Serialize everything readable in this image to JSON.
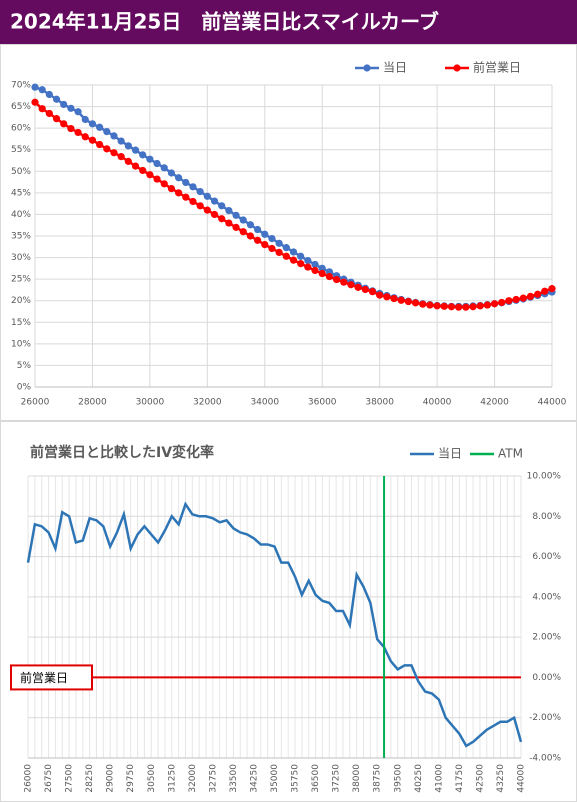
{
  "header": {
    "title": "2024年11月25日　前営業日比スマイルカーブ"
  },
  "chart_data": [
    {
      "type": "line",
      "markers": true,
      "legend": "top-right",
      "grid": true,
      "x": [
        26000,
        26250,
        26500,
        26750,
        27000,
        27250,
        27500,
        27750,
        28000,
        28250,
        28500,
        28750,
        29000,
        29250,
        29500,
        29750,
        30000,
        30250,
        30500,
        30750,
        31000,
        31250,
        31500,
        31750,
        32000,
        32250,
        32500,
        32750,
        33000,
        33250,
        33500,
        33750,
        34000,
        34250,
        34500,
        34750,
        35000,
        35250,
        35500,
        35750,
        36000,
        36250,
        36500,
        36750,
        37000,
        37250,
        37500,
        37750,
        38000,
        38250,
        38500,
        38750,
        39000,
        39250,
        39500,
        39750,
        40000,
        40250,
        40500,
        40750,
        41000,
        41250,
        41500,
        41750,
        42000,
        42250,
        42500,
        42750,
        43000,
        43250,
        43500,
        43750,
        44000
      ],
      "series": [
        {
          "name": "当日",
          "color": "#4472c4",
          "values": [
            69.5,
            68.9,
            67.8,
            66.7,
            65.5,
            64.6,
            63.8,
            62.0,
            61.0,
            60.2,
            59.2,
            58.2,
            57.0,
            55.9,
            54.9,
            53.8,
            52.8,
            51.8,
            50.8,
            49.6,
            48.5,
            47.4,
            46.4,
            45.3,
            44.2,
            43.1,
            42.0,
            40.9,
            39.8,
            38.7,
            37.6,
            36.5,
            35.4,
            34.4,
            33.3,
            32.3,
            31.3,
            30.3,
            29.3,
            28.4,
            27.5,
            26.7,
            25.8,
            25.0,
            24.3,
            23.6,
            22.9,
            22.3,
            21.7,
            21.2,
            20.7,
            20.3,
            19.9,
            19.6,
            19.3,
            19.1,
            18.9,
            18.8,
            18.7,
            18.7,
            18.7,
            18.8,
            18.9,
            19.1,
            19.3,
            19.5,
            19.8,
            20.1,
            20.4,
            20.8,
            21.2,
            21.6,
            22.0
          ]
        },
        {
          "name": "前営業日",
          "color": "#ff0000",
          "values": [
            66.0,
            64.5,
            63.4,
            62.2,
            61.0,
            59.9,
            59.0,
            58.0,
            57.2,
            56.2,
            55.2,
            54.3,
            53.4,
            52.3,
            51.2,
            50.2,
            49.2,
            48.2,
            47.1,
            46.0,
            45.0,
            44.0,
            43.0,
            42.0,
            41.0,
            40.0,
            39.0,
            38.0,
            37.0,
            36.0,
            35.0,
            34.0,
            33.0,
            32.1,
            31.2,
            30.3,
            29.4,
            28.6,
            27.8,
            27.0,
            26.3,
            25.6,
            24.9,
            24.3,
            23.7,
            23.1,
            22.6,
            22.1,
            21.3,
            20.9,
            20.5,
            20.1,
            19.8,
            19.5,
            19.2,
            19.0,
            18.8,
            18.7,
            18.6,
            18.5,
            18.5,
            18.6,
            18.8,
            19.0,
            19.3,
            19.6,
            20.0,
            20.3,
            20.6,
            21.0,
            21.5,
            22.2,
            22.8
          ]
        }
      ],
      "xlim": [
        26000,
        44000
      ],
      "xticks": [
        26000,
        28000,
        30000,
        32000,
        34000,
        36000,
        38000,
        40000,
        42000,
        44000
      ],
      "ylim": [
        0,
        70
      ],
      "yticks": [
        {
          "value": 0,
          "label": "0%"
        },
        {
          "value": 5,
          "label": "5%"
        },
        {
          "value": 10,
          "label": "10%"
        },
        {
          "value": 15,
          "label": "15%"
        },
        {
          "value": 20,
          "label": "20%"
        },
        {
          "value": 25,
          "label": "25%"
        },
        {
          "value": 30,
          "label": "30%"
        },
        {
          "value": 35,
          "label": "35%"
        },
        {
          "value": 40,
          "label": "40%"
        },
        {
          "value": 45,
          "label": "45%"
        },
        {
          "value": 50,
          "label": "50%"
        },
        {
          "value": 55,
          "label": "55%"
        },
        {
          "value": 60,
          "label": "60%"
        },
        {
          "value": 65,
          "label": "65%"
        },
        {
          "value": 70,
          "label": "70%"
        }
      ]
    },
    {
      "type": "line",
      "markers": false,
      "legend": "top-right",
      "grid": true,
      "title": "前営業日と比較したIV変化率",
      "x": [
        26000,
        26250,
        26500,
        26750,
        27000,
        27250,
        27500,
        27750,
        28000,
        28250,
        28500,
        28750,
        29000,
        29250,
        29500,
        29750,
        30000,
        30250,
        30500,
        30750,
        31000,
        31250,
        31500,
        31750,
        32000,
        32250,
        32500,
        32750,
        33000,
        33250,
        33500,
        33750,
        34000,
        34250,
        34500,
        34750,
        35000,
        35250,
        35500,
        35750,
        36000,
        36250,
        36500,
        36750,
        37000,
        37250,
        37500,
        37750,
        38000,
        38250,
        38500,
        38750,
        39000,
        39250,
        39500,
        39750,
        40000,
        40250,
        40500,
        40750,
        41000,
        41250,
        41500,
        41750,
        42000,
        42250,
        42500,
        42750,
        43000,
        43250,
        43500,
        43750,
        44000
      ],
      "series": [
        {
          "name": "当日",
          "color": "#2e75b6",
          "values": [
            5.7,
            7.6,
            7.5,
            7.2,
            6.4,
            8.2,
            8.0,
            6.7,
            6.8,
            7.9,
            7.8,
            7.5,
            6.5,
            7.2,
            8.1,
            6.4,
            7.1,
            7.5,
            7.1,
            6.7,
            7.3,
            8.0,
            7.6,
            8.6,
            8.1,
            8.0,
            8.0,
            7.9,
            7.7,
            7.8,
            7.4,
            7.2,
            7.1,
            6.9,
            6.6,
            6.6,
            6.5,
            5.7,
            5.7,
            5.0,
            4.1,
            4.8,
            4.1,
            3.8,
            3.7,
            3.3,
            3.3,
            2.6,
            5.1,
            4.5,
            3.7,
            1.9,
            1.5,
            0.8,
            0.4,
            0.6,
            0.6,
            -0.2,
            -0.7,
            -0.8,
            -1.1,
            -2.0,
            -2.4,
            -2.8,
            -3.4,
            -3.2,
            -2.9,
            -2.6,
            -2.4,
            -2.2,
            -2.2,
            -2.0,
            -3.2
          ]
        }
      ],
      "atm": {
        "name": "ATM",
        "x": 39000,
        "color": "#00b050"
      },
      "reference_line": {
        "label": "前営業日",
        "value": 0,
        "color": "#e00000"
      },
      "xlim": [
        26000,
        44000
      ],
      "xticks": [
        26000,
        26750,
        27500,
        28250,
        29000,
        29750,
        30500,
        31250,
        32000,
        32750,
        33500,
        34250,
        35000,
        35750,
        36500,
        37250,
        38000,
        38750,
        39500,
        40250,
        41000,
        41750,
        42500,
        43250,
        44000
      ],
      "ylim": [
        -4,
        10
      ],
      "yticks": [
        {
          "value": -4,
          "label": "-4.00%"
        },
        {
          "value": -2,
          "label": "-2.00%"
        },
        {
          "value": 0,
          "label": "0.00%"
        },
        {
          "value": 2,
          "label": "2.00%"
        },
        {
          "value": 4,
          "label": "4.00%"
        },
        {
          "value": 6,
          "label": "6.00%"
        },
        {
          "value": 8,
          "label": "8.00%"
        },
        {
          "value": 10,
          "label": "10.00%"
        }
      ]
    }
  ]
}
